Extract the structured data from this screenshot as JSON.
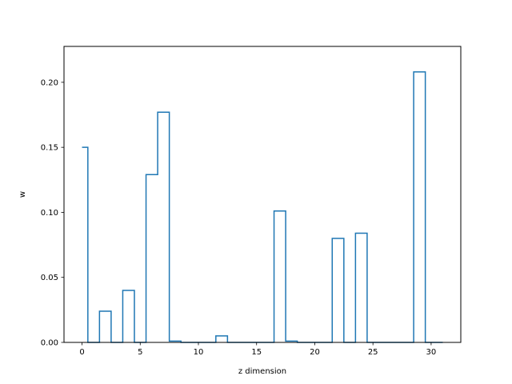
{
  "chart_data": {
    "type": "step",
    "title": "",
    "xlabel": "z dimension",
    "ylabel": "w",
    "xlim": [
      -1.55,
      32.55
    ],
    "ylim": [
      0,
      0.2276
    ],
    "x_ticks": [
      0,
      5,
      10,
      15,
      20,
      25,
      30
    ],
    "y_ticks": [
      0.0,
      0.05,
      0.1,
      0.15,
      0.2
    ],
    "x_tick_labels": [
      "0",
      "5",
      "10",
      "15",
      "20",
      "25",
      "30"
    ],
    "y_tick_labels": [
      "0.00",
      "0.05",
      "0.10",
      "0.15",
      "0.20"
    ],
    "grid": false,
    "legend": false,
    "step_where": "mid",
    "series": [
      {
        "color": "#1f77b4",
        "x": [
          0,
          1,
          2,
          3,
          4,
          5,
          6,
          7,
          8,
          9,
          10,
          11,
          12,
          13,
          14,
          15,
          16,
          17,
          18,
          19,
          20,
          21,
          22,
          23,
          24,
          25,
          26,
          27,
          28,
          29,
          30,
          31
        ],
        "y": [
          0.15,
          0.0,
          0.024,
          0.0,
          0.04,
          0.0,
          0.129,
          0.177,
          0.001,
          0.0,
          0.0,
          0.0,
          0.005,
          0.0,
          0.0,
          0.0,
          0.0,
          0.101,
          0.001,
          0.0,
          0.0,
          0.0,
          0.08,
          0.0,
          0.084,
          0.0,
          0.0,
          0.0,
          0.0,
          0.208,
          0.0,
          0.0
        ]
      }
    ]
  }
}
